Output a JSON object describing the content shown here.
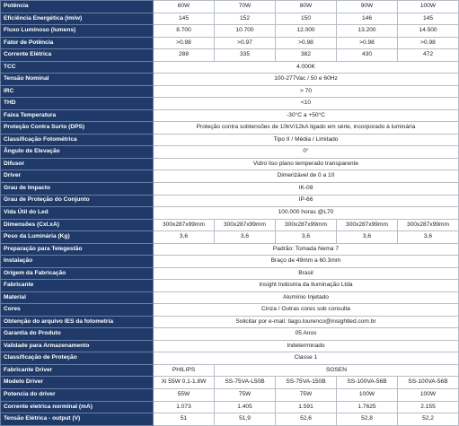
{
  "table": {
    "rows": [
      {
        "label": "Potência",
        "cells": [
          "60W",
          "70W",
          "80W",
          "90W",
          "100W"
        ]
      },
      {
        "label": "Eficiência Energética (lm/w)",
        "cells": [
          "145",
          "152",
          "150",
          "146",
          "145"
        ]
      },
      {
        "label": "Fluxo Luminoso (lumens)",
        "cells": [
          "8.700",
          "10.700",
          "12.000",
          "13.200",
          "14.500"
        ]
      },
      {
        "label": "Fator de Potência",
        "cells": [
          ">0.98",
          ">0.97",
          ">0.98",
          ">0.98",
          ">0.98"
        ]
      },
      {
        "label": "Corrente Elétrica",
        "cells": [
          "288",
          "335",
          "382",
          "430",
          "472"
        ]
      },
      {
        "label": "TCC",
        "cells": [
          "4.000K"
        ]
      },
      {
        "label": "Tensão Nominal",
        "cells": [
          "100-277Vac / 50 e 60Hz"
        ]
      },
      {
        "label": "IRC",
        "cells": [
          "> 70"
        ]
      },
      {
        "label": "THD",
        "cells": [
          "<10"
        ]
      },
      {
        "label": "Faixa Temperatura",
        "cells": [
          "-30°C a +50°C"
        ]
      },
      {
        "label": "Proteção Contra Surto (DPS)",
        "cells": [
          "Proteção contra sobtensões de 10kV/12kA ligado em série, incorporado à luminária"
        ]
      },
      {
        "label": "Classificação Fotométrica",
        "cells": [
          "Tipo II / Média / Limitado"
        ]
      },
      {
        "label": "Ângulo de Elevação",
        "cells": [
          "0°"
        ]
      },
      {
        "label": "Difusor",
        "cells": [
          "Vidro liso plano temperado transparente"
        ]
      },
      {
        "label": "Driver",
        "cells": [
          "Dimerizável de 0 a 10"
        ]
      },
      {
        "label": "Grau de Impacto",
        "cells": [
          "IK-08"
        ]
      },
      {
        "label": "Grau de Proteção do Conjunto",
        "cells": [
          "IP-66"
        ]
      },
      {
        "label": "Vida Útil do Led",
        "cells": [
          "100.000 horas @L70"
        ]
      },
      {
        "label": "Dimensões (Cxl.xA)",
        "cells": [
          "300x287x99mm",
          "300x287x99mm",
          "300x287x99mm",
          "300x287x99mm",
          "300x287x99mm"
        ]
      },
      {
        "label": "Peso da Luminária (Kg)",
        "cells": [
          "3,6",
          "3,6",
          "3,6",
          "3,6",
          "3,6"
        ]
      },
      {
        "label": "Preparação para Telegestão",
        "cells": [
          "Padrão: Tomada Nema 7"
        ]
      },
      {
        "label": "Instalação",
        "cells": [
          "Braço de 49mm a 60.3mm"
        ]
      },
      {
        "label": "Origem da Fabricação",
        "cells": [
          "Brasil"
        ]
      },
      {
        "label": "Fabricante",
        "cells": [
          "Insight Indústria da Iluminação Ltda"
        ]
      },
      {
        "label": "Material",
        "cells": [
          "Alumínio Injetado"
        ]
      },
      {
        "label": "Cores",
        "cells": [
          "Cinza / Outras cores sob consulta"
        ]
      },
      {
        "label": "Obtenção do arquivo IES da fotometria",
        "cells": [
          "Solicitar por e-mail: tiago.lourenco@insightled.com.br"
        ]
      },
      {
        "label": "Garantia do Produto",
        "cells": [
          "05 Anos"
        ]
      },
      {
        "label": "Validade para Armazenamento",
        "cells": [
          "Indeterminado"
        ]
      },
      {
        "label": "Classificação de Proteção",
        "cells": [
          "Classe 1"
        ]
      },
      {
        "label": "Fabricante Driver",
        "cells": [
          "PHILIPS",
          "SOSEN"
        ]
      },
      {
        "label": "Modelo Driver",
        "cells": [
          "Xi 55W 0.1-1.8W",
          "SS-75VA-L50B",
          "SS-75VA-150B",
          "SS-100VA-56B",
          "SS-100VA-56B"
        ]
      },
      {
        "label": "Potencia do driver",
        "cells": [
          "55W",
          "75W",
          "75W",
          "100W",
          "100W"
        ]
      },
      {
        "label": "Corrente eletrica norminal (mA)",
        "cells": [
          "1.073",
          "1.405",
          "1.591",
          "1.7625",
          "2.155"
        ]
      },
      {
        "label": "Tensão Elétrica - output (V)",
        "cells": [
          "51",
          "51,9",
          "52,6",
          "52,8",
          "52,2"
        ]
      }
    ]
  }
}
